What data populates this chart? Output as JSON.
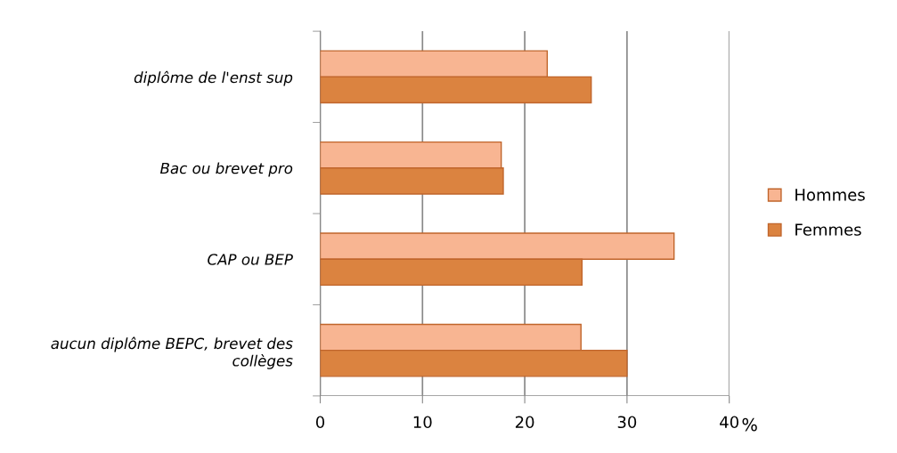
{
  "chart_data": {
    "type": "bar",
    "orientation": "horizontal",
    "categories": [
      "diplôme de l'enst sup",
      "Bac ou brevet pro",
      "CAP ou BEP",
      "aucun diplôme BEPC, brevet des\ncollèges"
    ],
    "series": [
      {
        "name": "Hommes",
        "color": "#f8b592",
        "values": [
          22.2,
          17.7,
          34.6,
          25.5
        ]
      },
      {
        "name": "Femmes",
        "color": "#db8340",
        "values": [
          26.5,
          17.9,
          25.6,
          30.0
        ]
      }
    ],
    "xlabel": "%",
    "xlim": [
      0,
      40
    ],
    "xticks": [
      0,
      10,
      20,
      30,
      40
    ],
    "grid": "x",
    "legend": "right"
  }
}
